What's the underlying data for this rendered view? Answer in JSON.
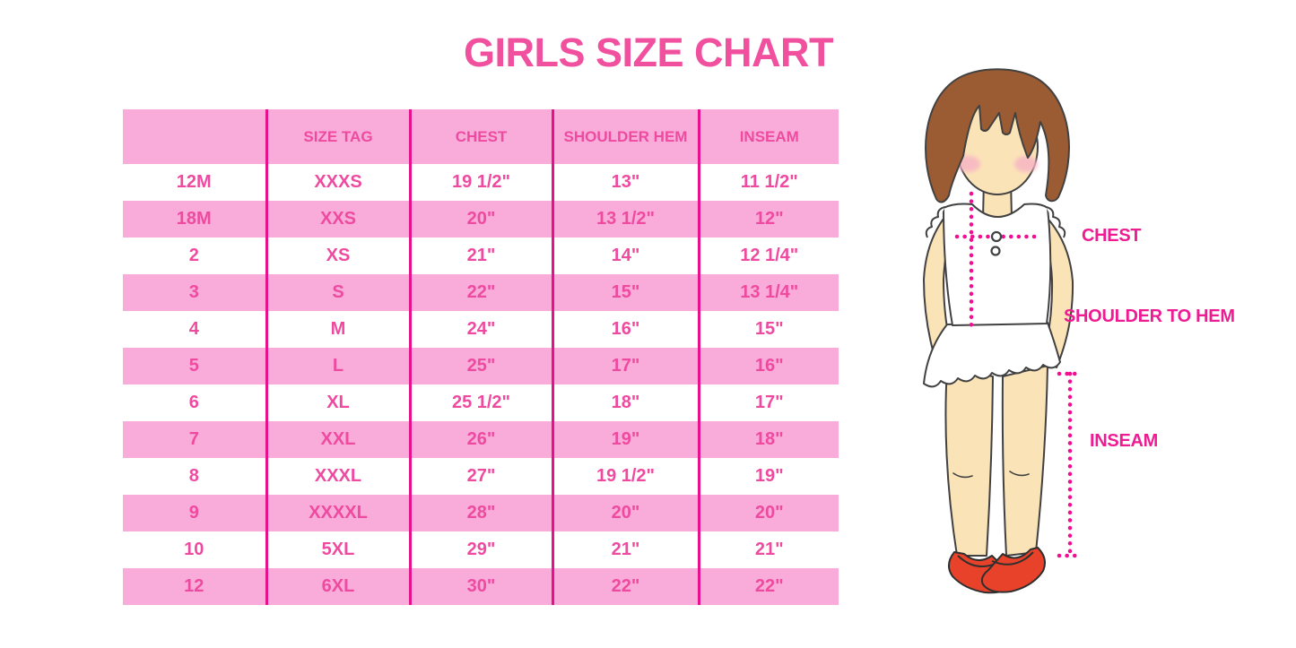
{
  "title": "GIRLS SIZE CHART",
  "chart_data": {
    "type": "table",
    "title": "GIRLS SIZE CHART",
    "columns": [
      "",
      "SIZE TAG",
      "CHEST",
      "SHOULDER HEM",
      "INSEAM"
    ],
    "rows": [
      [
        "12M",
        "XXXS",
        "19 1/2\"",
        "13\"",
        "11 1/2\""
      ],
      [
        "18M",
        "XXS",
        "20\"",
        "13 1/2\"",
        "12\""
      ],
      [
        "2",
        "XS",
        "21\"",
        "14\"",
        "12 1/4\""
      ],
      [
        "3",
        "S",
        "22\"",
        "15\"",
        "13 1/4\""
      ],
      [
        "4",
        "M",
        "24\"",
        "16\"",
        "15\""
      ],
      [
        "5",
        "L",
        "25\"",
        "17\"",
        "16\""
      ],
      [
        "6",
        "XL",
        "25 1/2\"",
        "18\"",
        "17\""
      ],
      [
        "7",
        "XXL",
        "26\"",
        "19\"",
        "18\""
      ],
      [
        "8",
        "XXXL",
        "27\"",
        "19 1/2\"",
        "19\""
      ],
      [
        "9",
        "XXXXL",
        "28\"",
        "20\"",
        "20\""
      ],
      [
        "10",
        "5XL",
        "29\"",
        "21\"",
        "21\""
      ],
      [
        "12",
        "6XL",
        "30\"",
        "22\"",
        "22\""
      ]
    ],
    "layout": {
      "row_striping": "white / pink alternating, header pink",
      "grid": "vertical magenta dividers only"
    }
  },
  "figure": {
    "chest_label": "CHEST",
    "shoulder_to_hem_label": "SHOULDER TO HEM",
    "inseam_label": "INSEAM"
  },
  "colors": {
    "title_pink": "#f0509e",
    "row_band_pink": "#f9acd9",
    "cell_text_pink": "#ee4ba0",
    "divider_magenta": "#e8118c",
    "measure_magenta": "#f00f90",
    "label_pink": "#ee1c93",
    "hair_brown": "#9b5c33",
    "skin_tone": "#fbe3b8",
    "blush_pink": "#f7b6c4",
    "shoe_red": "#e8432a",
    "outline_dark": "#414141",
    "background": "#ffffff"
  }
}
